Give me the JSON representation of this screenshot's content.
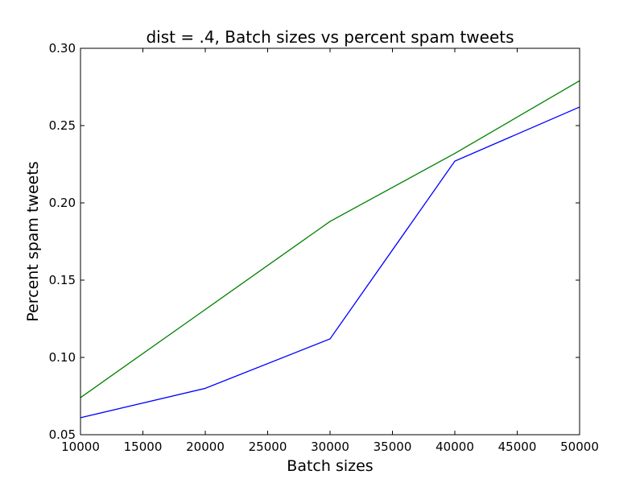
{
  "chart_data": {
    "type": "line",
    "title": "dist = .4, Batch sizes vs percent spam tweets",
    "xlabel": "Batch sizes",
    "ylabel": "Percent spam tweets",
    "xlim": [
      10000,
      50000
    ],
    "ylim": [
      0.05,
      0.3
    ],
    "xticks": [
      10000,
      15000,
      20000,
      25000,
      30000,
      35000,
      40000,
      45000,
      50000
    ],
    "xtick_labels": [
      "10000",
      "15000",
      "20000",
      "25000",
      "30000",
      "35000",
      "40000",
      "45000",
      "50000"
    ],
    "yticks": [
      0.05,
      0.1,
      0.15,
      0.2,
      0.25,
      0.3
    ],
    "ytick_labels": [
      "0.05",
      "0.10",
      "0.15",
      "0.20",
      "0.25",
      "0.30"
    ],
    "grid": false,
    "x": [
      10000,
      20000,
      30000,
      40000,
      50000
    ],
    "series": [
      {
        "color": "#0000ff",
        "values": [
          0.061,
          0.08,
          0.112,
          0.227,
          0.262
        ]
      },
      {
        "color": "#008000",
        "values": [
          0.074,
          0.131,
          0.188,
          0.232,
          0.279
        ]
      }
    ]
  }
}
